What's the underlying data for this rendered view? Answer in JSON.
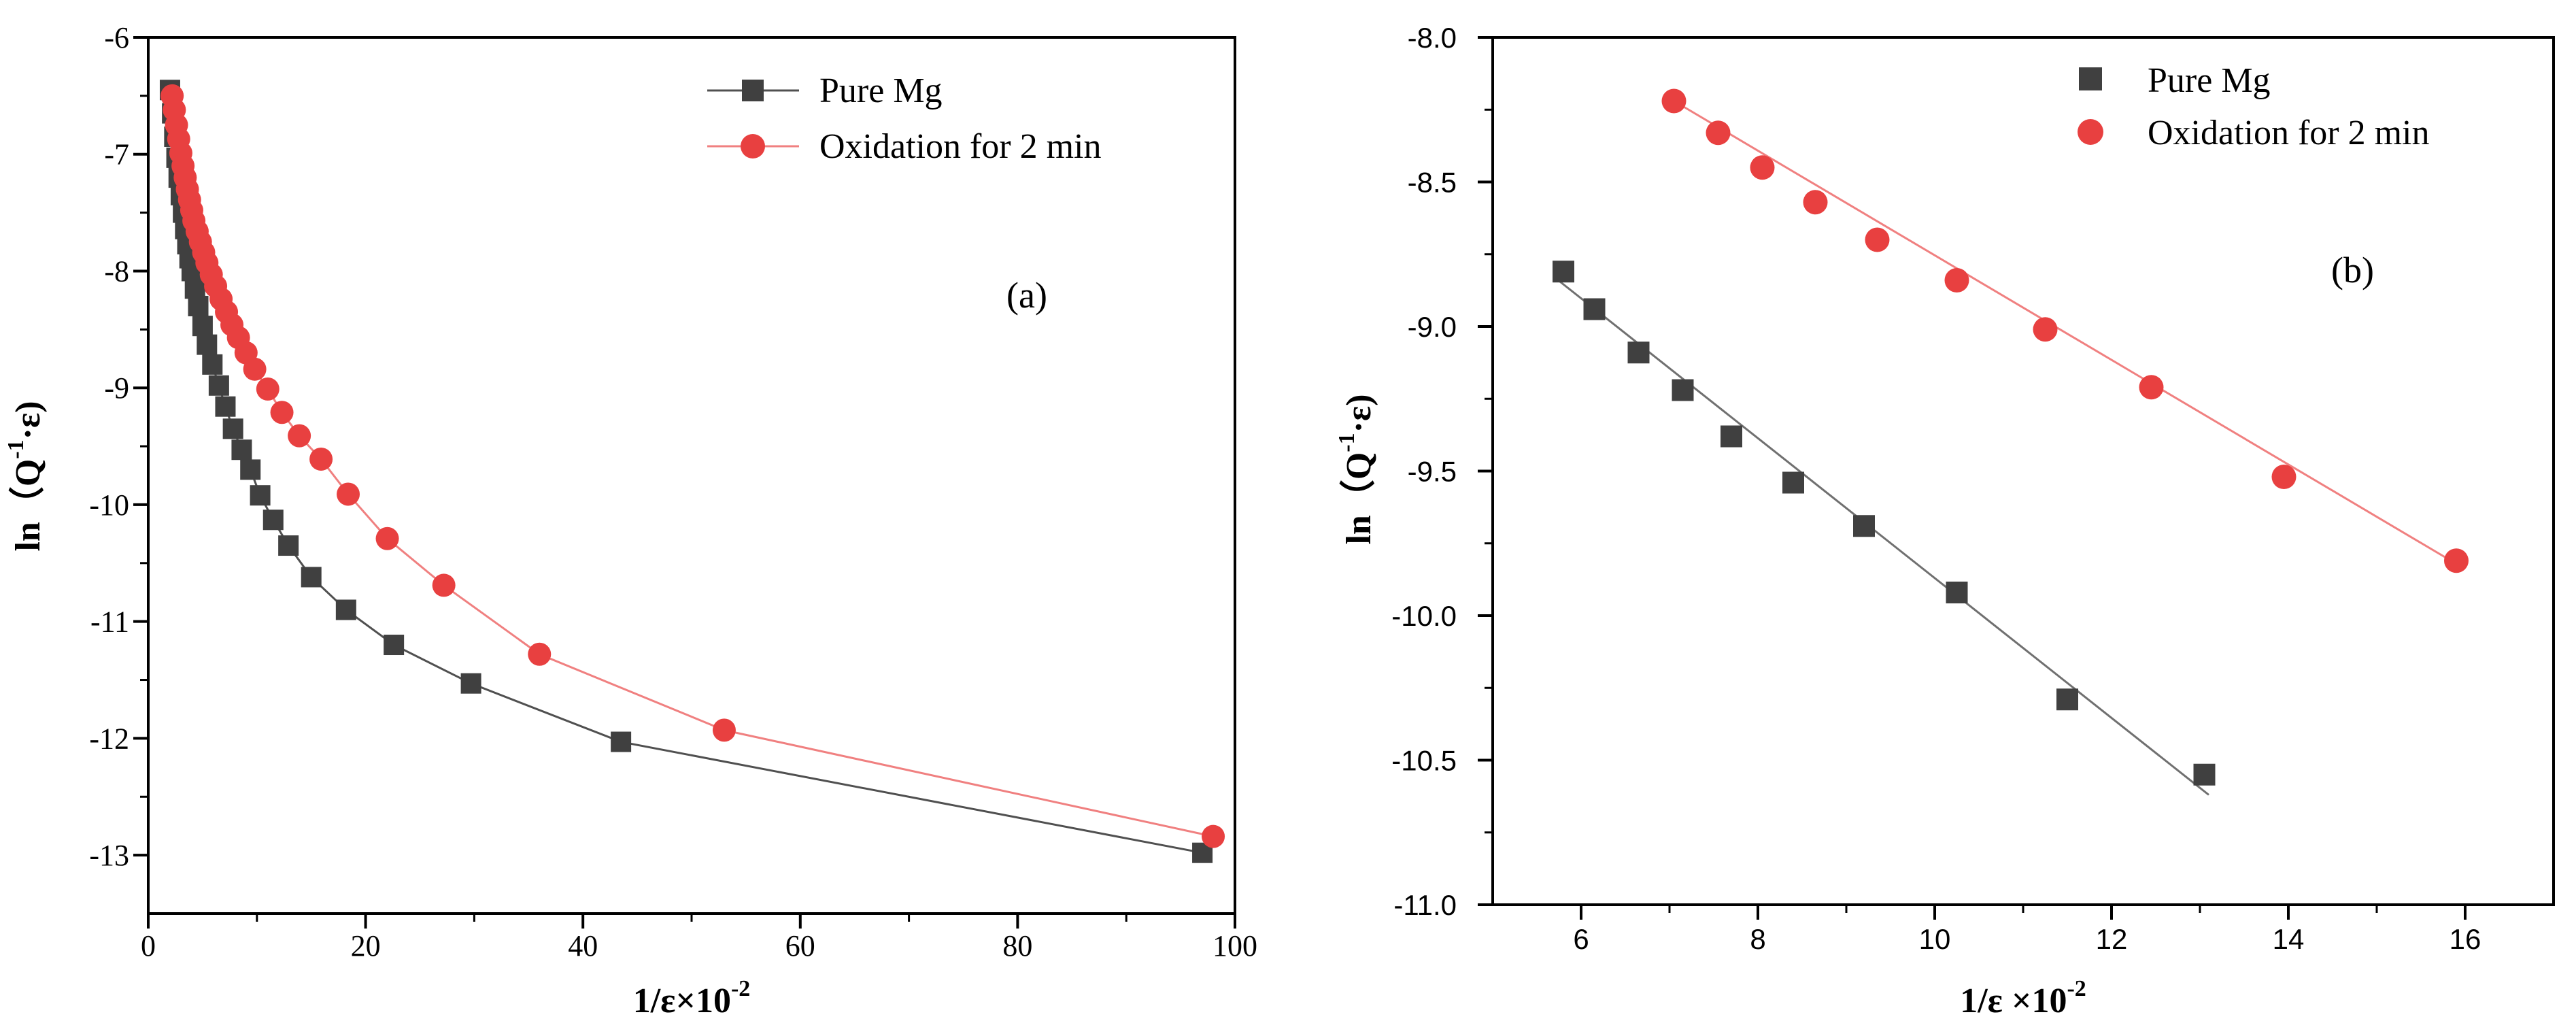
{
  "chart_data": [
    {
      "type": "line",
      "panel_label": "(a)",
      "xlabel": "1/ε×10",
      "xlabel_sup": "-2",
      "ylabel_pre": "ln（Q",
      "ylabel_sup": "-1",
      "ylabel_post": "·ε)",
      "xlim": [
        0,
        100
      ],
      "ylim": [
        -13.5,
        -6
      ],
      "xticks": [
        0,
        20,
        40,
        60,
        80,
        100
      ],
      "yticks": [
        -6,
        -7,
        -8,
        -9,
        -10,
        -11,
        -12,
        -13
      ],
      "legend_position": "top-right",
      "series": [
        {
          "name": "Pure Mg",
          "marker": "square",
          "color": "#404040",
          "line_color": "#505050",
          "x": [
            2.0,
            2.2,
            2.4,
            2.6,
            2.8,
            3.0,
            3.2,
            3.4,
            3.6,
            3.8,
            4.0,
            4.3,
            4.6,
            5.0,
            5.4,
            5.9,
            6.5,
            7.1,
            7.8,
            8.6,
            9.4,
            10.3,
            11.5,
            12.9,
            15.0,
            18.2,
            22.6,
            29.7,
            43.5,
            97.0
          ],
          "y": [
            -6.45,
            -6.65,
            -6.85,
            -7.03,
            -7.2,
            -7.35,
            -7.5,
            -7.64,
            -7.77,
            -7.89,
            -8.0,
            -8.15,
            -8.3,
            -8.47,
            -8.63,
            -8.8,
            -8.98,
            -9.16,
            -9.35,
            -9.53,
            -9.7,
            -9.92,
            -10.13,
            -10.35,
            -10.62,
            -10.9,
            -11.2,
            -11.53,
            -12.03,
            -12.98
          ]
        },
        {
          "name": "Oxidation for 2 min",
          "marker": "circle",
          "color": "#e84040",
          "line_color": "#f08080",
          "x": [
            2.2,
            2.4,
            2.6,
            2.8,
            3.0,
            3.2,
            3.4,
            3.6,
            3.8,
            4.0,
            4.2,
            4.5,
            4.8,
            5.1,
            5.4,
            5.8,
            6.2,
            6.7,
            7.2,
            7.7,
            8.3,
            9.0,
            9.8,
            11.0,
            12.3,
            13.9,
            15.9,
            18.4,
            22.0,
            27.2,
            36.0,
            53.0,
            98.0
          ],
          "y": [
            -6.5,
            -6.62,
            -6.75,
            -6.87,
            -6.99,
            -7.1,
            -7.2,
            -7.3,
            -7.39,
            -7.48,
            -7.57,
            -7.66,
            -7.75,
            -7.84,
            -7.93,
            -8.03,
            -8.13,
            -8.24,
            -8.35,
            -8.46,
            -8.57,
            -8.7,
            -8.84,
            -9.01,
            -9.21,
            -9.41,
            -9.61,
            -9.91,
            -10.29,
            -10.69,
            -11.28,
            -11.93,
            -12.84
          ]
        }
      ]
    },
    {
      "type": "scatter",
      "panel_label": "(b)",
      "xlabel": "1/ε ×10",
      "xlabel_sup": "-2",
      "ylabel_pre": "ln（Q",
      "ylabel_sup": "-1",
      "ylabel_post": "·ε)",
      "xlim": [
        5,
        17
      ],
      "ylim": [
        -11.0,
        -8.0
      ],
      "xticks": [
        6,
        8,
        10,
        12,
        14,
        16
      ],
      "yticks": [
        "-8.0",
        "-8.5",
        "-9.0",
        "-9.5",
        "-10.0",
        "-10.5",
        "-11.0"
      ],
      "legend_position": "top-right",
      "series": [
        {
          "name": "Pure Mg",
          "marker": "square",
          "color": "#404040",
          "x": [
            5.8,
            6.15,
            6.65,
            7.15,
            7.7,
            8.4,
            9.2,
            10.25,
            11.5,
            13.05
          ],
          "y": [
            -8.81,
            -8.94,
            -9.09,
            -9.22,
            -9.38,
            -9.54,
            -9.69,
            -9.92,
            -10.29,
            -10.55
          ],
          "fit": {
            "x": [
              5.7,
              13.1
            ],
            "y": [
              -8.83,
              -10.62
            ],
            "color": "#707070"
          }
        },
        {
          "name": "Oxidation for 2 min",
          "marker": "circle",
          "color": "#e84040",
          "x": [
            7.05,
            7.55,
            8.05,
            8.65,
            9.35,
            10.25,
            11.25,
            12.45,
            13.95,
            15.9
          ],
          "y": [
            -8.22,
            -8.33,
            -8.45,
            -8.57,
            -8.7,
            -8.84,
            -9.01,
            -9.21,
            -9.52,
            -9.81
          ],
          "fit": {
            "x": [
              7.05,
              15.95
            ],
            "y": [
              -8.22,
              -9.83
            ],
            "color": "#f08080"
          }
        }
      ]
    }
  ]
}
